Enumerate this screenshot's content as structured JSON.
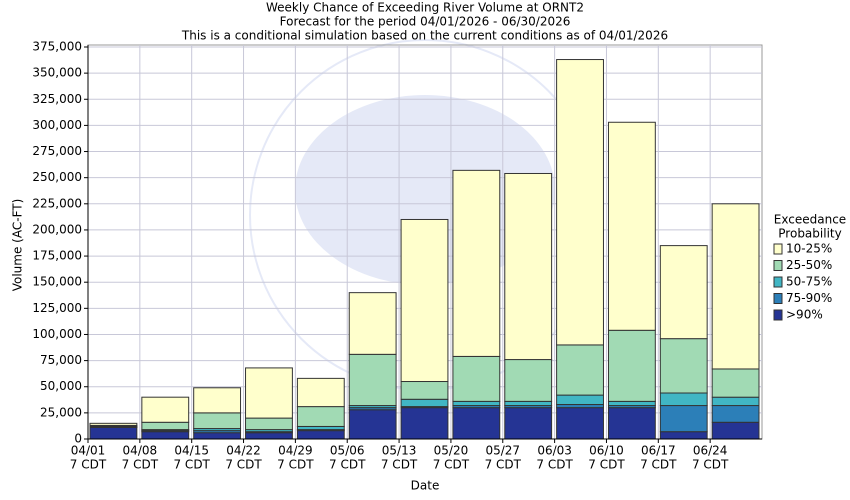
{
  "chart_data": {
    "type": "stacked_bar",
    "title": "Weekly Chance of Exceeding River Volume at ORNT2",
    "subtitle": "Forecast for the period 04/01/2026 - 06/30/2026",
    "note": "This is a conditional simulation based on the current conditions as of 04/01/2026",
    "x_label": "Date",
    "y_label": "Volume (AC-FT)",
    "legend_title": [
      "Exceedance",
      "Probability"
    ],
    "legend_position": "right",
    "grid": true,
    "categories": [
      "04/01",
      "04/08",
      "04/15",
      "04/22",
      "04/29",
      "05/06",
      "05/13",
      "05/20",
      "05/27",
      "06/03",
      "06/10",
      "06/17",
      "06/24"
    ],
    "category_sublabels": [
      "7 CDT",
      "7 CDT",
      "7 CDT",
      "7 CDT",
      "7 CDT",
      "7 CDT",
      "7 CDT",
      "7 CDT",
      "7 CDT",
      "7 CDT",
      "7 CDT",
      "7 CDT",
      "7 CDT"
    ],
    "series": [
      {
        "name": ">90%",
        "color": "#253494",
        "values": [
          11000,
          7000,
          6000,
          6000,
          8000,
          28000,
          30000,
          30000,
          30000,
          30000,
          30000,
          7000,
          16000
        ]
      },
      {
        "name": "75-90%",
        "color": "#2c7fb8",
        "values": [
          500,
          1000,
          2000,
          1000,
          1000,
          2000,
          1000,
          2000,
          2000,
          3000,
          2000,
          25000,
          16000
        ]
      },
      {
        "name": "50-75%",
        "color": "#41b6c4",
        "values": [
          500,
          1000,
          2000,
          2000,
          3000,
          2000,
          7000,
          4000,
          4000,
          9000,
          4000,
          12000,
          8000
        ]
      },
      {
        "name": "25-50%",
        "color": "#a1dab4",
        "values": [
          1000,
          7000,
          15000,
          11000,
          19000,
          49000,
          17000,
          43000,
          40000,
          48000,
          68000,
          52000,
          27000
        ]
      },
      {
        "name": "10-25%",
        "color": "#ffffcc",
        "values": [
          2000,
          24000,
          24000,
          48000,
          27000,
          59000,
          155000,
          178000,
          178000,
          273000,
          199000,
          89000,
          158000
        ]
      }
    ],
    "ylim": [
      0,
      375000
    ],
    "yticks": [
      0,
      {
        "value": 25000,
        "label": "25,000"
      },
      {
        "value": 50000,
        "label": "50,000"
      },
      {
        "value": 75000,
        "label": "75,000"
      },
      {
        "value": 100000,
        "label": "100,000"
      },
      {
        "value": 125000,
        "label": "125,000"
      },
      {
        "value": 150000,
        "label": "150,000"
      },
      {
        "value": 175000,
        "label": "175,000"
      },
      {
        "value": 200000,
        "label": "200,000"
      },
      {
        "value": 225000,
        "label": "225,000"
      },
      {
        "value": 250000,
        "label": "250,000"
      },
      {
        "value": 275000,
        "label": "275,000"
      },
      {
        "value": 300000,
        "label": "300,000"
      },
      {
        "value": 325000,
        "label": "325,000"
      },
      {
        "value": 350000,
        "label": "350,000"
      },
      {
        "value": 375000,
        "label": "375,000"
      }
    ]
  }
}
